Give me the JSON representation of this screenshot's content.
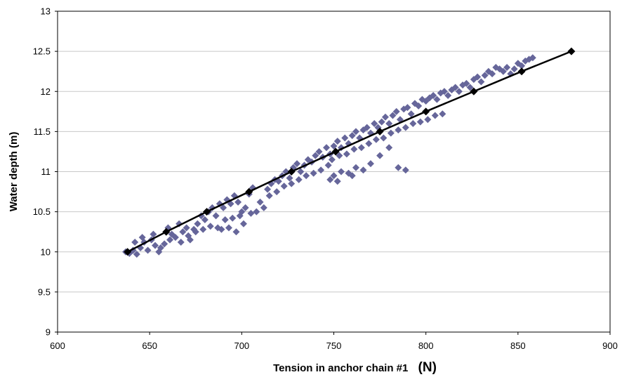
{
  "chart_data": {
    "type": "scatter",
    "title": "",
    "xlabel": "Tension in anchor chain #1",
    "xlabel_unit": "(N)",
    "ylabel": "Water depth (m)",
    "xlim": [
      600,
      900
    ],
    "ylim": [
      9,
      13
    ],
    "xticks": [
      600,
      650,
      700,
      750,
      800,
      850,
      900
    ],
    "yticks": [
      9,
      9.5,
      10,
      10.5,
      11,
      11.5,
      12,
      12.5,
      13
    ],
    "xtick_labels": [
      "600",
      "650",
      "700",
      "750",
      "800",
      "850",
      "900"
    ],
    "ytick_labels": [
      "9",
      "9.5",
      "10",
      "10.5",
      "11",
      "11.5",
      "12",
      "12.5",
      "13"
    ],
    "grid": "horizontal",
    "legend": "none",
    "colors": {
      "scatter": "#66669a",
      "line": "#000000",
      "grid": "#c8c8c8"
    },
    "series": [
      {
        "type": "scatter",
        "marker": "diamond",
        "points": [
          [
            637,
            10.0
          ],
          [
            639,
            9.98
          ],
          [
            641,
            10.02
          ],
          [
            643,
            9.97
          ],
          [
            645,
            10.05
          ],
          [
            647,
            10.12
          ],
          [
            649,
            10.02
          ],
          [
            651,
            10.15
          ],
          [
            653,
            10.08
          ],
          [
            655,
            10.0
          ],
          [
            658,
            10.1
          ],
          [
            660,
            10.3
          ],
          [
            662,
            10.22
          ],
          [
            664,
            10.18
          ],
          [
            666,
            10.35
          ],
          [
            668,
            10.25
          ],
          [
            670,
            10.3
          ],
          [
            672,
            10.15
          ],
          [
            642,
            10.12
          ],
          [
            646,
            10.18
          ],
          [
            652,
            10.22
          ],
          [
            656,
            10.05
          ],
          [
            661,
            10.15
          ],
          [
            667,
            10.12
          ],
          [
            671,
            10.2
          ],
          [
            674,
            10.28
          ],
          [
            676,
            10.35
          ],
          [
            678,
            10.45
          ],
          [
            680,
            10.4
          ],
          [
            682,
            10.5
          ],
          [
            684,
            10.55
          ],
          [
            686,
            10.45
          ],
          [
            688,
            10.6
          ],
          [
            690,
            10.55
          ],
          [
            692,
            10.65
          ],
          [
            694,
            10.6
          ],
          [
            696,
            10.7
          ],
          [
            698,
            10.62
          ],
          [
            700,
            10.5
          ],
          [
            702,
            10.55
          ],
          [
            704,
            10.72
          ],
          [
            706,
            10.8
          ],
          [
            675,
            10.25
          ],
          [
            679,
            10.28
          ],
          [
            683,
            10.32
          ],
          [
            687,
            10.3
          ],
          [
            691,
            10.4
          ],
          [
            695,
            10.42
          ],
          [
            699,
            10.45
          ],
          [
            701,
            10.35
          ],
          [
            705,
            10.48
          ],
          [
            689,
            10.28
          ],
          [
            693,
            10.3
          ],
          [
            697,
            10.25
          ],
          [
            708,
            10.5
          ],
          [
            710,
            10.62
          ],
          [
            712,
            10.55
          ],
          [
            714,
            10.78
          ],
          [
            716,
            10.85
          ],
          [
            718,
            10.9
          ],
          [
            720,
            10.88
          ],
          [
            722,
            10.95
          ],
          [
            724,
            11.0
          ],
          [
            726,
            10.92
          ],
          [
            728,
            11.05
          ],
          [
            730,
            11.1
          ],
          [
            732,
            11.0
          ],
          [
            734,
            11.08
          ],
          [
            736,
            11.15
          ],
          [
            738,
            11.12
          ],
          [
            740,
            11.2
          ],
          [
            742,
            11.25
          ],
          [
            744,
            11.18
          ],
          [
            746,
            11.3
          ],
          [
            748,
            11.22
          ],
          [
            715,
            10.7
          ],
          [
            719,
            10.75
          ],
          [
            723,
            10.82
          ],
          [
            727,
            10.85
          ],
          [
            731,
            10.9
          ],
          [
            735,
            10.95
          ],
          [
            739,
            10.98
          ],
          [
            743,
            11.02
          ],
          [
            747,
            11.08
          ],
          [
            750,
            11.32
          ],
          [
            752,
            11.38
          ],
          [
            754,
            11.3
          ],
          [
            756,
            11.42
          ],
          [
            758,
            11.35
          ],
          [
            760,
            11.45
          ],
          [
            762,
            11.5
          ],
          [
            764,
            11.42
          ],
          [
            766,
            11.52
          ],
          [
            768,
            11.55
          ],
          [
            770,
            11.48
          ],
          [
            772,
            11.6
          ],
          [
            774,
            11.55
          ],
          [
            776,
            11.62
          ],
          [
            778,
            11.68
          ],
          [
            780,
            11.6
          ],
          [
            782,
            11.7
          ],
          [
            784,
            11.75
          ],
          [
            786,
            11.65
          ],
          [
            788,
            11.78
          ],
          [
            790,
            11.8
          ],
          [
            792,
            11.72
          ],
          [
            794,
            11.85
          ],
          [
            796,
            11.82
          ],
          [
            798,
            11.9
          ],
          [
            800,
            11.88
          ],
          [
            749,
            11.15
          ],
          [
            753,
            11.2
          ],
          [
            757,
            11.22
          ],
          [
            761,
            11.28
          ],
          [
            765,
            11.3
          ],
          [
            769,
            11.35
          ],
          [
            773,
            11.4
          ],
          [
            777,
            11.42
          ],
          [
            781,
            11.48
          ],
          [
            785,
            11.52
          ],
          [
            789,
            11.55
          ],
          [
            793,
            11.6
          ],
          [
            797,
            11.62
          ],
          [
            801,
            11.65
          ],
          [
            805,
            11.7
          ],
          [
            809,
            11.72
          ],
          [
            750,
            10.95
          ],
          [
            754,
            11.0
          ],
          [
            758,
            10.98
          ],
          [
            762,
            11.05
          ],
          [
            766,
            11.02
          ],
          [
            770,
            11.1
          ],
          [
            748,
            10.9
          ],
          [
            752,
            10.88
          ],
          [
            760,
            10.95
          ],
          [
            775,
            11.2
          ],
          [
            780,
            11.3
          ],
          [
            785,
            11.05
          ],
          [
            789,
            11.02
          ],
          [
            802,
            11.92
          ],
          [
            804,
            11.95
          ],
          [
            806,
            11.9
          ],
          [
            808,
            11.98
          ],
          [
            810,
            12.0
          ],
          [
            812,
            11.95
          ],
          [
            814,
            12.02
          ],
          [
            816,
            12.05
          ],
          [
            818,
            12.0
          ],
          [
            820,
            12.08
          ],
          [
            822,
            12.1
          ],
          [
            824,
            12.05
          ],
          [
            826,
            12.15
          ],
          [
            828,
            12.18
          ],
          [
            830,
            12.12
          ],
          [
            832,
            12.2
          ],
          [
            834,
            12.25
          ],
          [
            836,
            12.22
          ],
          [
            838,
            12.3
          ],
          [
            840,
            12.28
          ],
          [
            842,
            12.25
          ],
          [
            844,
            12.3
          ],
          [
            846,
            12.22
          ],
          [
            848,
            12.28
          ],
          [
            850,
            12.35
          ],
          [
            852,
            12.32
          ],
          [
            854,
            12.38
          ],
          [
            856,
            12.4
          ],
          [
            858,
            12.42
          ]
        ]
      },
      {
        "type": "line",
        "marker": "diamond",
        "points": [
          [
            638,
            10.0
          ],
          [
            659,
            10.25
          ],
          [
            681,
            10.5
          ],
          [
            704,
            10.75
          ],
          [
            727,
            11.0
          ],
          [
            751,
            11.25
          ],
          [
            775,
            11.5
          ],
          [
            800,
            11.75
          ],
          [
            826,
            12.0
          ],
          [
            852,
            12.25
          ],
          [
            879,
            12.5
          ]
        ]
      }
    ]
  }
}
